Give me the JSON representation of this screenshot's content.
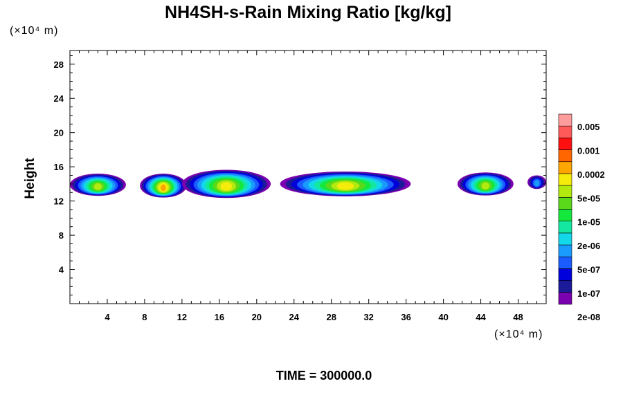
{
  "chart_data": {
    "type": "heatmap",
    "title": "NH4SH-s-Rain Mixing Ratio [kg/kg]",
    "ylabel": "Height",
    "x_unit": "(×10⁴ m)",
    "y_unit": "(×10⁴ m)",
    "xlim": [
      0,
      51
    ],
    "ylim": [
      0,
      29.6
    ],
    "x_ticks": [
      4,
      8,
      12,
      16,
      20,
      24,
      28,
      32,
      36,
      40,
      44,
      48
    ],
    "y_ticks": [
      4,
      8,
      12,
      16,
      20,
      24,
      28
    ],
    "colorbar": {
      "labels": [
        "0.005",
        "0.001",
        "0.0002",
        "5e-05",
        "1e-05",
        "2e-06",
        "5e-07",
        "1e-07",
        "2e-08"
      ],
      "colors": [
        "#7a00b0",
        "#1b1b9a",
        "#0000dd",
        "#1a5cff",
        "#1a9cff",
        "#12d8ea",
        "#14e8a0",
        "#14e83c",
        "#5ad81a",
        "#b2ea10",
        "#f6ec0c",
        "#ffa600",
        "#ff6600",
        "#ff1010",
        "#ff5a5a",
        "#ff9c9c"
      ]
    },
    "clouds": [
      {
        "x0": 0,
        "x1": 6.0,
        "y": 13.9,
        "h": 2.6,
        "peak": 9
      },
      {
        "x0": 7.5,
        "x1": 12.5,
        "y": 13.8,
        "h": 2.8,
        "peak": 11
      },
      {
        "x0": 12.0,
        "x1": 21.5,
        "y": 14.0,
        "h": 3.3,
        "peak": 10
      },
      {
        "x0": 22.5,
        "x1": 36.5,
        "y": 14.0,
        "h": 2.9,
        "peak": 10
      },
      {
        "x0": 41.5,
        "x1": 47.5,
        "y": 14.0,
        "h": 2.7,
        "peak": 9
      },
      {
        "x0": 49.0,
        "x1": 51.0,
        "y": 14.2,
        "h": 1.6,
        "peak": 4
      }
    ],
    "time_label": "TIME = 300000.0"
  }
}
